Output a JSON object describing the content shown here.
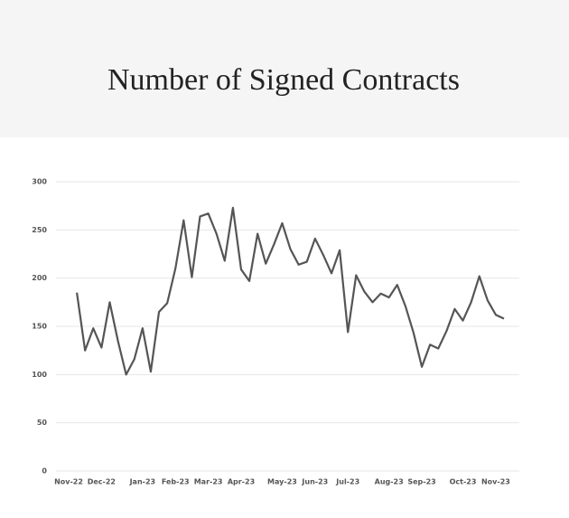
{
  "chart_data": {
    "type": "line",
    "title": "Number of Signed Contracts",
    "categories": [
      "Nov-22",
      null,
      null,
      null,
      "Dec-22",
      null,
      null,
      null,
      null,
      "Jan-23",
      null,
      null,
      null,
      "Feb-23",
      null,
      null,
      null,
      "Mar-23",
      null,
      null,
      null,
      "Apr-23",
      null,
      null,
      null,
      null,
      "May-23",
      null,
      null,
      null,
      "Jun-23",
      null,
      null,
      null,
      "Jul-23",
      null,
      null,
      null,
      null,
      "Aug-23",
      null,
      null,
      null,
      "Sep-23",
      null,
      null,
      null,
      null,
      "Oct-23",
      null,
      null,
      null,
      "Nov-23",
      null
    ],
    "series": [
      {
        "color": "#555555",
        "values": [
          null,
          185,
          125,
          148,
          128,
          175,
          135,
          100,
          116,
          148,
          103,
          165,
          174,
          210,
          260,
          201,
          264,
          267,
          246,
          218,
          273,
          209,
          197,
          246,
          215,
          235,
          257,
          230,
          214,
          217,
          241,
          224,
          205,
          229,
          144,
          203,
          186,
          175,
          184,
          180,
          193,
          171,
          143,
          108,
          131,
          127,
          145,
          168,
          156,
          175,
          202,
          177,
          162,
          158
        ]
      }
    ],
    "ylim": [
      0,
      300
    ],
    "yticks": [
      0,
      50,
      100,
      150,
      200,
      250,
      300
    ],
    "grid": true
  }
}
